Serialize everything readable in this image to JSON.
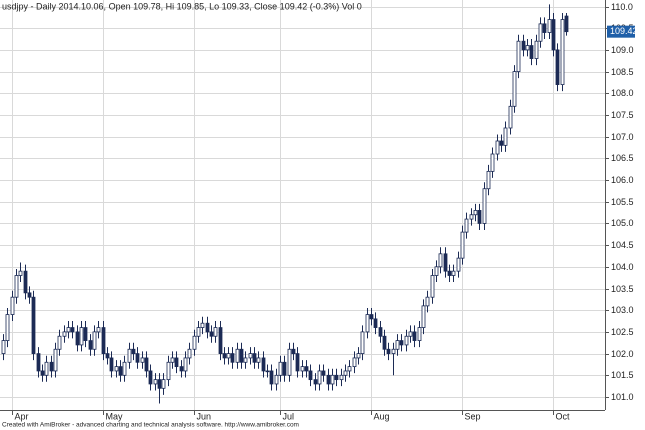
{
  "chart_data": {
    "type": "candlestick",
    "title": "usdjpy - Daily 2014.10.06, Open 109.78, Hi 109.85, Lo 109.33, Close 109.42 (-0.3%) Vol 0",
    "footer": "Created with AmiBroker - advanced charting and technical analysis software. http://www.amibroker.com",
    "up_color": "#ffffff",
    "down_color": "#1c2b55",
    "outline_color": "#1c2b55",
    "last_label_color": "#1f5fa8",
    "grid": true,
    "ylim": [
      100.7,
      110.15
    ],
    "yticks": [
      {
        "value": 101,
        "label": "101.0"
      },
      101.5,
      {
        "value": 102,
        "label": "102.0"
      },
      102.5,
      {
        "value": 103,
        "label": "103.0"
      },
      103.5,
      {
        "value": 104,
        "label": "104.0"
      },
      104.5,
      {
        "value": 105,
        "label": "105.0"
      },
      105.5,
      {
        "value": 106,
        "label": "106.0"
      },
      106.5,
      {
        "value": 107,
        "label": "107.0"
      },
      107.5,
      {
        "value": 108,
        "label": "108.0"
      },
      108.5,
      {
        "value": 109,
        "label": "109.0"
      },
      109.5,
      {
        "value": 110,
        "label": "110.0"
      }
    ],
    "xticks": [
      {
        "value": 2,
        "label": "Apr"
      },
      {
        "value": 23,
        "label": "May"
      },
      {
        "value": 44,
        "label": "Jun"
      },
      {
        "value": 64,
        "label": "Jul"
      },
      {
        "value": 85,
        "label": "Aug"
      },
      {
        "value": 106,
        "label": "Sep"
      },
      {
        "value": 127,
        "label": "Oct"
      }
    ],
    "open": [
      102.0,
      102.3,
      102.9,
      103.3,
      103.8,
      103.9,
      103.4,
      103.3,
      102.0,
      101.6,
      101.5,
      101.8,
      101.6,
      102.1,
      102.4,
      102.5,
      102.6,
      102.5,
      102.2,
      102.6,
      102.3,
      102.1,
      102.5,
      102.6,
      102.0,
      101.9,
      101.6,
      101.7,
      101.5,
      101.8,
      102.1,
      102.0,
      101.8,
      101.9,
      101.6,
      101.3,
      101.4,
      101.2,
      101.4,
      101.8,
      101.9,
      101.7,
      101.6,
      101.9,
      102.1,
      102.4,
      102.6,
      102.7,
      102.5,
      102.4,
      102.6,
      102.0,
      101.9,
      102.0,
      101.8,
      102.1,
      101.8,
      101.9,
      102.0,
      101.8,
      101.9,
      101.6,
      101.6,
      101.3,
      101.5,
      101.8,
      101.5,
      102.1,
      102.0,
      101.6,
      101.7,
      101.6,
      101.4,
      101.3,
      101.6,
      101.5,
      101.3,
      101.5,
      101.4,
      101.5,
      101.6,
      101.7,
      101.9,
      102.0,
      102.5,
      102.9,
      102.8,
      102.6,
      102.4,
      102.1,
      102.0,
      102.1,
      102.3,
      102.2,
      102.4,
      102.5,
      102.3,
      102.6,
      103.1,
      103.3,
      103.8,
      104.0,
      104.3,
      103.9,
      103.8,
      103.9,
      104.2,
      104.8,
      105.1,
      105.2,
      105.3,
      105.0,
      105.8,
      106.2,
      106.6,
      106.9,
      106.8,
      107.2,
      107.7,
      108.5,
      109.2,
      109.0,
      109.1,
      108.8,
      109.2,
      109.6,
      109.4,
      109.7,
      109.0,
      108.2,
      109.78
    ],
    "high": [
      102.45,
      103.05,
      103.45,
      103.95,
      104.1,
      104.05,
      103.55,
      103.45,
      102.15,
      101.75,
      101.95,
      101.95,
      102.25,
      102.55,
      102.65,
      102.75,
      102.75,
      102.65,
      102.75,
      102.75,
      102.45,
      102.65,
      102.75,
      102.75,
      102.15,
      102.05,
      101.85,
      101.85,
      101.95,
      102.25,
      102.25,
      102.15,
      102.05,
      102.05,
      101.75,
      101.55,
      101.55,
      101.55,
      101.95,
      102.05,
      102.05,
      101.85,
      102.05,
      102.25,
      102.55,
      102.75,
      102.85,
      102.85,
      102.65,
      102.75,
      102.75,
      102.15,
      102.15,
      102.15,
      102.25,
      102.25,
      102.05,
      102.15,
      102.15,
      102.05,
      102.05,
      101.75,
      101.75,
      101.65,
      101.95,
      101.95,
      102.25,
      102.25,
      102.15,
      101.85,
      101.85,
      101.75,
      101.55,
      101.75,
      101.75,
      101.65,
      101.65,
      101.65,
      101.65,
      101.75,
      101.85,
      102.05,
      102.15,
      102.65,
      103.05,
      103.05,
      102.95,
      102.75,
      102.55,
      102.25,
      102.25,
      102.45,
      102.45,
      102.55,
      102.65,
      102.65,
      102.75,
      103.25,
      103.45,
      103.95,
      104.15,
      104.45,
      104.45,
      104.05,
      104.05,
      104.35,
      104.95,
      105.25,
      105.35,
      105.45,
      105.45,
      105.95,
      106.35,
      106.75,
      107.05,
      107.05,
      107.35,
      107.85,
      108.65,
      109.35,
      109.35,
      109.25,
      109.25,
      109.35,
      109.75,
      109.75,
      110.05,
      109.85,
      109.15,
      109.85,
      109.85
    ],
    "low": [
      101.85,
      102.15,
      102.75,
      103.15,
      103.65,
      103.25,
      103.15,
      101.85,
      101.45,
      101.35,
      101.35,
      101.45,
      101.45,
      101.95,
      102.25,
      102.35,
      102.35,
      102.05,
      102.05,
      102.15,
      101.95,
      101.95,
      102.35,
      101.85,
      101.75,
      101.45,
      101.45,
      101.35,
      101.35,
      101.65,
      101.85,
      101.65,
      101.65,
      101.45,
      101.15,
      101.15,
      100.85,
      101.05,
      101.25,
      101.65,
      101.55,
      101.45,
      101.45,
      101.75,
      101.95,
      102.25,
      102.45,
      102.35,
      102.25,
      102.25,
      101.85,
      101.75,
      101.75,
      101.65,
      101.65,
      101.65,
      101.65,
      101.75,
      101.65,
      101.65,
      101.45,
      101.45,
      101.15,
      101.15,
      101.35,
      101.35,
      101.35,
      101.85,
      101.45,
      101.45,
      101.45,
      101.25,
      101.15,
      101.15,
      101.35,
      101.15,
      101.15,
      101.25,
      101.25,
      101.35,
      101.45,
      101.55,
      101.75,
      101.85,
      102.35,
      102.65,
      102.45,
      102.25,
      101.95,
      101.85,
      101.5,
      101.95,
      102.05,
      102.05,
      102.25,
      102.15,
      102.15,
      102.45,
      102.95,
      103.15,
      103.65,
      103.85,
      103.75,
      103.65,
      103.65,
      103.75,
      104.05,
      104.65,
      104.95,
      105.05,
      104.85,
      104.85,
      105.65,
      106.05,
      106.45,
      106.65,
      106.65,
      107.05,
      107.55,
      108.35,
      108.85,
      108.85,
      108.65,
      108.65,
      109.05,
      109.25,
      109.25,
      108.85,
      108.05,
      108.05,
      109.33
    ],
    "close": [
      102.3,
      102.9,
      103.3,
      103.8,
      103.9,
      103.4,
      103.3,
      102.0,
      101.6,
      101.5,
      101.8,
      101.6,
      102.1,
      102.4,
      102.5,
      102.6,
      102.5,
      102.2,
      102.6,
      102.3,
      102.1,
      102.5,
      102.6,
      102.0,
      101.9,
      101.6,
      101.7,
      101.5,
      101.8,
      102.1,
      102.0,
      101.8,
      101.9,
      101.6,
      101.3,
      101.4,
      101.2,
      101.4,
      101.8,
      101.9,
      101.7,
      101.6,
      101.9,
      102.1,
      102.4,
      102.6,
      102.7,
      102.5,
      102.4,
      102.6,
      102.0,
      101.9,
      102.0,
      101.8,
      102.1,
      101.8,
      101.9,
      102.0,
      101.8,
      101.9,
      101.6,
      101.6,
      101.3,
      101.5,
      101.8,
      101.5,
      102.1,
      102.0,
      101.6,
      101.7,
      101.6,
      101.4,
      101.3,
      101.6,
      101.5,
      101.3,
      101.5,
      101.4,
      101.5,
      101.6,
      101.7,
      101.9,
      102.0,
      102.5,
      102.9,
      102.8,
      102.6,
      102.4,
      102.1,
      102.0,
      102.1,
      102.3,
      102.2,
      102.4,
      102.5,
      102.3,
      102.6,
      103.1,
      103.3,
      103.8,
      104.0,
      104.3,
      103.9,
      103.8,
      103.9,
      104.2,
      104.8,
      105.1,
      105.2,
      105.3,
      105.0,
      105.8,
      106.2,
      106.6,
      106.9,
      106.8,
      107.2,
      107.7,
      108.5,
      109.2,
      109.0,
      109.1,
      108.8,
      109.2,
      109.6,
      109.4,
      109.7,
      109.0,
      108.2,
      109.7,
      109.42
    ]
  }
}
